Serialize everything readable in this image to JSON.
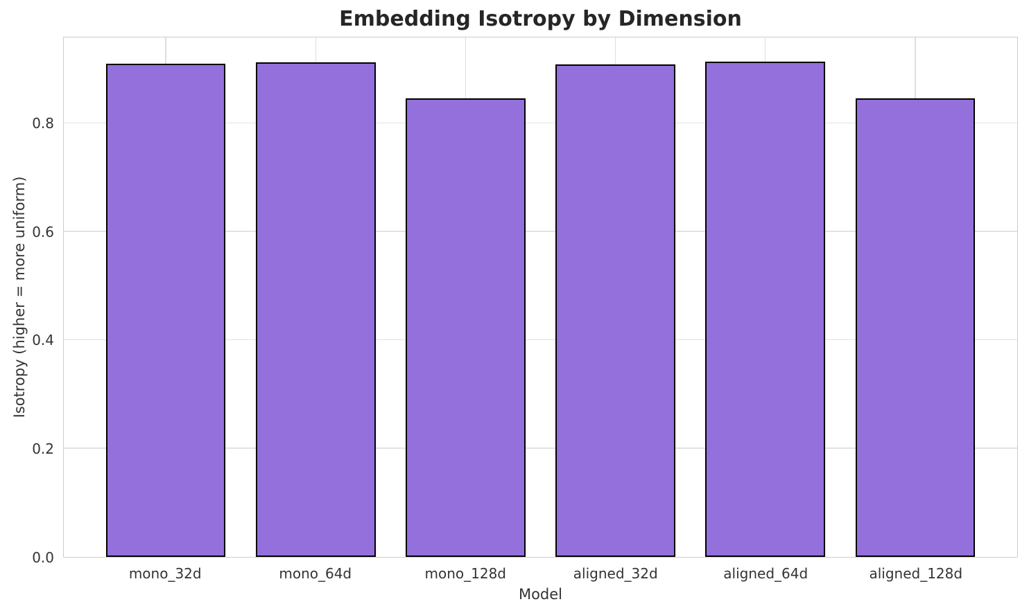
{
  "chart_data": {
    "type": "bar",
    "title": "Embedding Isotropy by Dimension",
    "xlabel": "Model",
    "ylabel": "Isotropy (higher = more uniform)",
    "categories": [
      "mono_32d",
      "mono_64d",
      "mono_128d",
      "aligned_32d",
      "aligned_64d",
      "aligned_128d"
    ],
    "values": [
      0.91,
      0.913,
      0.846,
      0.909,
      0.914,
      0.846
    ],
    "ylim": [
      0,
      0.959
    ],
    "yticks": [
      0.0,
      0.2,
      0.4,
      0.6,
      0.8
    ],
    "grid": true,
    "legend": "none",
    "bar_color": "#9370DB",
    "bar_edge_color": "#000000",
    "background_color": "#ffffff"
  }
}
